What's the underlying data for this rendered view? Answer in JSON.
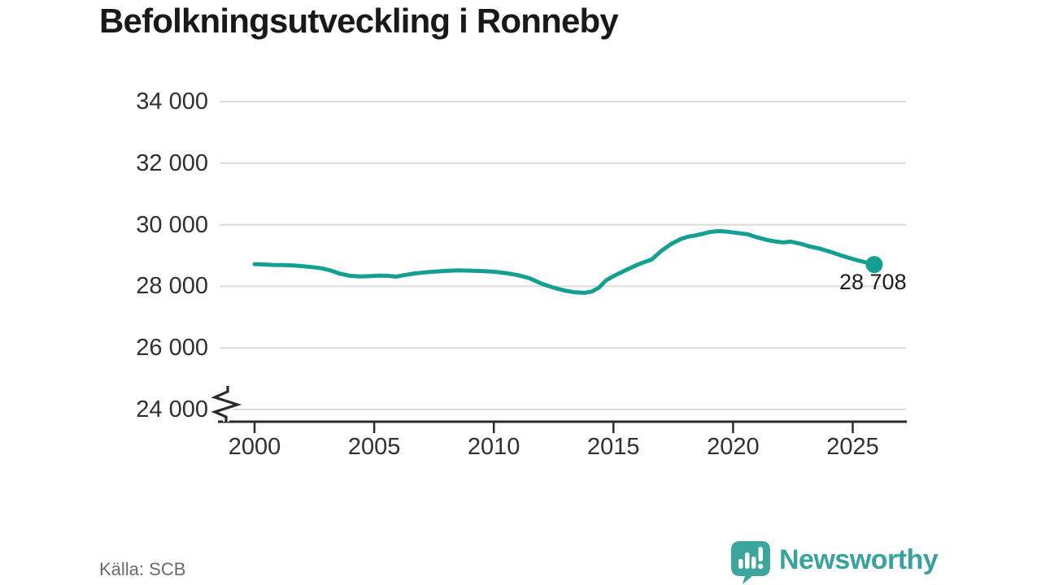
{
  "title": "Befolkningsutveckling i Ronneby",
  "source": "Källa: SCB",
  "branding": {
    "name": "Newsworthy"
  },
  "colors": {
    "line": "#13a093",
    "grid": "#dcdcdc",
    "axis": "#2b2b2b",
    "title_text": "#191919",
    "tick_text": "#303030",
    "annotation_text": "#1c1c1c",
    "source_text": "#6a6a73",
    "brand_teal": "#3ba59e",
    "background": "#ffffff"
  },
  "chart_data": {
    "type": "line",
    "title": "Befolkningsutveckling i Ronneby",
    "xlabel": "",
    "ylabel": "",
    "grid": true,
    "legend": "none",
    "y_axis_break": true,
    "ylim": [
      24000,
      34000
    ],
    "xlim": [
      2000,
      2026
    ],
    "y_ticks": [
      {
        "value": 34000,
        "label": "34 000"
      },
      {
        "value": 32000,
        "label": "32 000"
      },
      {
        "value": 30000,
        "label": "30 000"
      },
      {
        "value": 28000,
        "label": "28 000"
      },
      {
        "value": 26000,
        "label": "26 000"
      },
      {
        "value": 24000,
        "label": "24 000"
      }
    ],
    "x_ticks": [
      {
        "value": 2000,
        "label": "2000"
      },
      {
        "value": 2005,
        "label": "2005"
      },
      {
        "value": 2010,
        "label": "2010"
      },
      {
        "value": 2015,
        "label": "2015"
      },
      {
        "value": 2020,
        "label": "2020"
      },
      {
        "value": 2025,
        "label": "2025"
      }
    ],
    "series": [
      {
        "name": "population",
        "color": "#13a093",
        "points": [
          [
            2000.0,
            28720
          ],
          [
            2000.4,
            28710
          ],
          [
            2000.8,
            28695
          ],
          [
            2001.2,
            28690
          ],
          [
            2001.6,
            28680
          ],
          [
            2002.0,
            28655
          ],
          [
            2002.4,
            28625
          ],
          [
            2002.8,
            28585
          ],
          [
            2003.2,
            28510
          ],
          [
            2003.6,
            28405
          ],
          [
            2004.0,
            28340
          ],
          [
            2004.4,
            28320
          ],
          [
            2004.8,
            28330
          ],
          [
            2005.2,
            28345
          ],
          [
            2005.6,
            28340
          ],
          [
            2005.9,
            28315
          ],
          [
            2006.3,
            28370
          ],
          [
            2006.7,
            28420
          ],
          [
            2007.1,
            28450
          ],
          [
            2007.5,
            28475
          ],
          [
            2008.0,
            28500
          ],
          [
            2008.5,
            28520
          ],
          [
            2009.0,
            28510
          ],
          [
            2009.5,
            28495
          ],
          [
            2010.0,
            28475
          ],
          [
            2010.5,
            28430
          ],
          [
            2011.0,
            28365
          ],
          [
            2011.5,
            28260
          ],
          [
            2012.0,
            28085
          ],
          [
            2012.5,
            27955
          ],
          [
            2013.0,
            27855
          ],
          [
            2013.4,
            27805
          ],
          [
            2013.8,
            27790
          ],
          [
            2014.1,
            27830
          ],
          [
            2014.4,
            27960
          ],
          [
            2014.7,
            28200
          ],
          [
            2015.0,
            28330
          ],
          [
            2015.5,
            28520
          ],
          [
            2016.0,
            28700
          ],
          [
            2016.3,
            28790
          ],
          [
            2016.6,
            28870
          ],
          [
            2017.0,
            29150
          ],
          [
            2017.4,
            29370
          ],
          [
            2017.8,
            29530
          ],
          [
            2018.1,
            29610
          ],
          [
            2018.4,
            29650
          ],
          [
            2018.7,
            29700
          ],
          [
            2019.0,
            29760
          ],
          [
            2019.4,
            29795
          ],
          [
            2019.8,
            29770
          ],
          [
            2020.2,
            29730
          ],
          [
            2020.6,
            29690
          ],
          [
            2021.0,
            29590
          ],
          [
            2021.4,
            29510
          ],
          [
            2021.8,
            29450
          ],
          [
            2022.1,
            29425
          ],
          [
            2022.4,
            29455
          ],
          [
            2022.8,
            29385
          ],
          [
            2023.2,
            29295
          ],
          [
            2023.6,
            29230
          ],
          [
            2024.0,
            29135
          ],
          [
            2024.4,
            29035
          ],
          [
            2024.8,
            28935
          ],
          [
            2025.2,
            28845
          ],
          [
            2025.5,
            28785
          ],
          [
            2025.9,
            28708
          ]
        ]
      }
    ],
    "end_annotation": {
      "label": "28 708",
      "value": 28708,
      "x": 2025.9
    }
  }
}
